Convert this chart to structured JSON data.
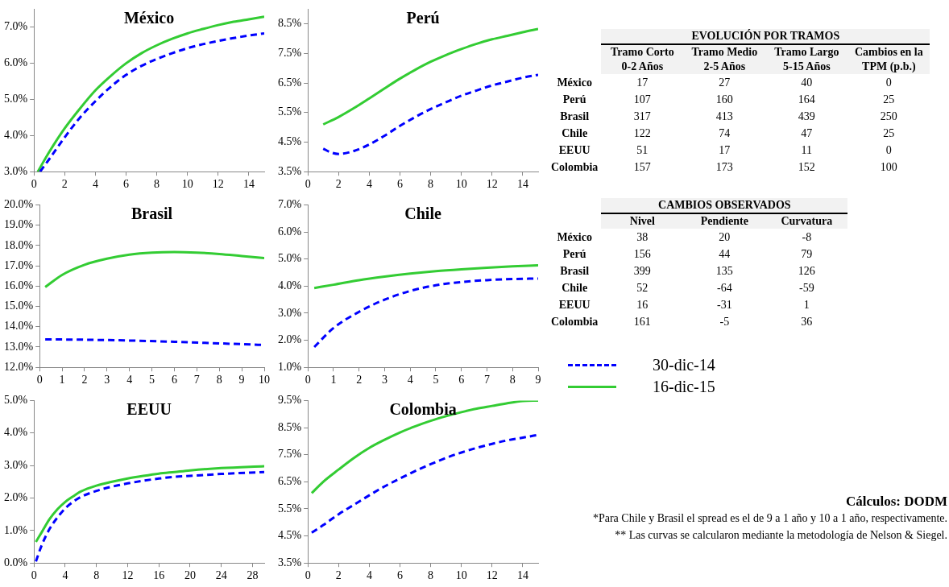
{
  "chart_data": [
    {
      "type": "line",
      "title": "México",
      "xlim": [
        0,
        15
      ],
      "xticks": [
        0,
        2,
        4,
        6,
        8,
        10,
        12,
        14
      ],
      "ylim": [
        3,
        7.5
      ],
      "yticks": [
        {
          "value": 3,
          "label": "3.0%"
        },
        {
          "value": 4,
          "label": "4.0%"
        },
        {
          "value": 5,
          "label": "5.0%"
        },
        {
          "value": 6,
          "label": "6.0%"
        },
        {
          "value": 7,
          "label": "7.0%"
        }
      ],
      "legend": "right",
      "marker": "none",
      "series": [
        {
          "name": "30-dic-14",
          "color": "#0000ff",
          "line_style": "dashed",
          "x": [
            0.4,
            1,
            2,
            3,
            4,
            5,
            6,
            7,
            8,
            9,
            10,
            11,
            12,
            13,
            14,
            15
          ],
          "values": [
            3.0,
            3.35,
            3.95,
            4.5,
            4.95,
            5.35,
            5.68,
            5.93,
            6.12,
            6.28,
            6.42,
            6.53,
            6.62,
            6.7,
            6.77,
            6.83
          ]
        },
        {
          "name": "16-dic-15",
          "color": "#33cc33",
          "line_style": "solid",
          "x": [
            0.25,
            1,
            2,
            3,
            4,
            5,
            6,
            7,
            8,
            9,
            10,
            11,
            12,
            13,
            14,
            15
          ],
          "values": [
            3.0,
            3.55,
            4.2,
            4.75,
            5.25,
            5.65,
            6.0,
            6.28,
            6.5,
            6.68,
            6.83,
            6.95,
            7.06,
            7.15,
            7.22,
            7.29
          ]
        }
      ]
    },
    {
      "type": "line",
      "title": "Perú",
      "xlim": [
        0,
        15
      ],
      "xticks": [
        0,
        2,
        4,
        6,
        8,
        10,
        12,
        14
      ],
      "ylim": [
        3.5,
        9
      ],
      "yticks": [
        {
          "value": 3.5,
          "label": "3.5%"
        },
        {
          "value": 4.5,
          "label": "4.5%"
        },
        {
          "value": 5.5,
          "label": "5.5%"
        },
        {
          "value": 6.5,
          "label": "6.5%"
        },
        {
          "value": 7.5,
          "label": "7.5%"
        },
        {
          "value": 8.5,
          "label": "8.5%"
        }
      ],
      "marker": "none",
      "series": [
        {
          "color": "#0000ff",
          "line_style": "dashed",
          "x": [
            1,
            1.5,
            2,
            3,
            4,
            5,
            6,
            7,
            8,
            9,
            10,
            11,
            12,
            13,
            14,
            15
          ],
          "values": [
            4.28,
            4.15,
            4.1,
            4.2,
            4.42,
            4.72,
            5.05,
            5.35,
            5.62,
            5.85,
            6.07,
            6.25,
            6.42,
            6.55,
            6.68,
            6.78
          ]
        },
        {
          "color": "#33cc33",
          "line_style": "solid",
          "x": [
            1,
            2,
            3,
            4,
            5,
            6,
            7,
            8,
            9,
            10,
            11,
            12,
            13,
            14,
            15
          ],
          "values": [
            5.1,
            5.35,
            5.65,
            5.98,
            6.32,
            6.65,
            6.95,
            7.22,
            7.45,
            7.65,
            7.83,
            7.98,
            8.1,
            8.22,
            8.33
          ]
        }
      ]
    },
    {
      "type": "line",
      "title": "Brasil",
      "xlim": [
        0,
        10
      ],
      "xticks": [
        0,
        1,
        2,
        3,
        4,
        5,
        6,
        7,
        8,
        9,
        10
      ],
      "ylim": [
        12,
        20
      ],
      "yticks": [
        {
          "value": 12,
          "label": "12.0%"
        },
        {
          "value": 13,
          "label": "13.0%"
        },
        {
          "value": 14,
          "label": "14.0%"
        },
        {
          "value": 15,
          "label": "15.0%"
        },
        {
          "value": 16,
          "label": "16.0%"
        },
        {
          "value": 17,
          "label": "17.0%"
        },
        {
          "value": 18,
          "label": "18.0%"
        },
        {
          "value": 19,
          "label": "19.0%"
        },
        {
          "value": 20,
          "label": "20.0%"
        }
      ],
      "marker": "none",
      "series": [
        {
          "color": "#0000ff",
          "line_style": "dashed",
          "x": [
            0.25,
            2,
            4,
            6,
            8,
            10
          ],
          "values": [
            13.38,
            13.36,
            13.32,
            13.26,
            13.18,
            13.1
          ]
        },
        {
          "color": "#33cc33",
          "line_style": "solid",
          "x": [
            0.25,
            1,
            2,
            3,
            4,
            5,
            6,
            7,
            8,
            9,
            10
          ],
          "values": [
            15.95,
            16.55,
            17.05,
            17.35,
            17.55,
            17.65,
            17.68,
            17.65,
            17.58,
            17.48,
            17.38
          ]
        }
      ]
    },
    {
      "type": "line",
      "title": "Chile",
      "xlim": [
        0,
        9
      ],
      "xticks": [
        0,
        1,
        2,
        3,
        4,
        5,
        6,
        7,
        8,
        9
      ],
      "ylim": [
        1,
        7
      ],
      "yticks": [
        {
          "value": 1,
          "label": "1.0%"
        },
        {
          "value": 2,
          "label": "2.0%"
        },
        {
          "value": 3,
          "label": "3.0%"
        },
        {
          "value": 4,
          "label": "4.0%"
        },
        {
          "value": 5,
          "label": "5.0%"
        },
        {
          "value": 6,
          "label": "6.0%"
        },
        {
          "value": 7,
          "label": "7.0%"
        }
      ],
      "marker": "none",
      "series": [
        {
          "color": "#0000ff",
          "line_style": "dashed",
          "x": [
            0.25,
            1,
            2,
            3,
            4,
            5,
            6,
            7,
            8,
            9
          ],
          "values": [
            1.75,
            2.45,
            3.05,
            3.5,
            3.82,
            4.03,
            4.15,
            4.22,
            4.26,
            4.28
          ]
        },
        {
          "color": "#33cc33",
          "line_style": "solid",
          "x": [
            0.25,
            1,
            2,
            3,
            4,
            5,
            6,
            7,
            8,
            9
          ],
          "values": [
            3.93,
            4.05,
            4.22,
            4.35,
            4.46,
            4.55,
            4.62,
            4.68,
            4.73,
            4.77
          ]
        }
      ]
    },
    {
      "type": "line",
      "title": "EEUU",
      "xlim": [
        0,
        29.5
      ],
      "xticks": [
        0,
        4,
        8,
        12,
        16,
        20,
        24,
        28
      ],
      "ylim": [
        0,
        5
      ],
      "yticks": [
        {
          "value": 0,
          "label": "0.0%"
        },
        {
          "value": 1,
          "label": "1.0%"
        },
        {
          "value": 2,
          "label": "2.0%"
        },
        {
          "value": 3,
          "label": "3.0%"
        },
        {
          "value": 4,
          "label": "4.0%"
        },
        {
          "value": 5,
          "label": "5.0%"
        }
      ],
      "marker": "none",
      "series": [
        {
          "color": "#0000ff",
          "line_style": "dashed",
          "x": [
            0.25,
            1,
            2,
            3,
            4,
            5,
            6,
            8,
            10,
            12,
            14,
            16,
            18,
            20,
            24,
            29.5
          ],
          "values": [
            0.05,
            0.55,
            1.05,
            1.4,
            1.68,
            1.88,
            2.03,
            2.22,
            2.35,
            2.45,
            2.53,
            2.6,
            2.65,
            2.68,
            2.74,
            2.8
          ]
        },
        {
          "color": "#33cc33",
          "line_style": "solid",
          "x": [
            0.25,
            1,
            2,
            3,
            4,
            5,
            6,
            8,
            10,
            12,
            14,
            16,
            18,
            20,
            24,
            29.5
          ],
          "values": [
            0.65,
            0.95,
            1.35,
            1.65,
            1.88,
            2.05,
            2.2,
            2.38,
            2.5,
            2.6,
            2.68,
            2.75,
            2.8,
            2.85,
            2.92,
            2.98
          ]
        }
      ]
    },
    {
      "type": "line",
      "title": "Colombia",
      "xlim": [
        0,
        15
      ],
      "xticks": [
        0,
        2,
        4,
        6,
        8,
        10,
        12,
        14
      ],
      "ylim": [
        3.5,
        9.5
      ],
      "yticks": [
        {
          "value": 3.5,
          "label": "3.5%"
        },
        {
          "value": 4.5,
          "label": "4.5%"
        },
        {
          "value": 5.5,
          "label": "5.5%"
        },
        {
          "value": 6.5,
          "label": "6.5%"
        },
        {
          "value": 7.5,
          "label": "7.5%"
        },
        {
          "value": 8.5,
          "label": "8.5%"
        },
        {
          "value": 9.5,
          "label": "9.5%"
        }
      ],
      "marker": "none",
      "series": [
        {
          "color": "#0000ff",
          "line_style": "dashed",
          "x": [
            0.25,
            1,
            2,
            3,
            4,
            5,
            6,
            7,
            8,
            9,
            10,
            11,
            12,
            13,
            14,
            15
          ],
          "values": [
            4.62,
            4.9,
            5.3,
            5.65,
            6.0,
            6.33,
            6.62,
            6.9,
            7.15,
            7.38,
            7.58,
            7.75,
            7.9,
            8.03,
            8.13,
            8.23
          ]
        },
        {
          "color": "#33cc33",
          "line_style": "solid",
          "x": [
            0.25,
            1,
            2,
            3,
            4,
            5,
            6,
            7,
            8,
            9,
            10,
            11,
            12,
            13,
            14,
            15
          ],
          "values": [
            6.08,
            6.5,
            6.95,
            7.38,
            7.75,
            8.05,
            8.32,
            8.55,
            8.75,
            8.92,
            9.07,
            9.2,
            9.3,
            9.4,
            9.48,
            9.5
          ]
        }
      ]
    },
    {
      "type": "heatmap",
      "title": "EVOLUCIÓN POR TRAMOS",
      "data_labels": true,
      "categories": [
        "Tramo Corto 0-2 Años",
        "Tramo Medio 2-5 Años",
        "Tramo Largo 5-15 Años",
        "Cambios en la TPM (p.b.)"
      ],
      "y_categories": [
        "México",
        "Perú",
        "Brasil",
        "Chile",
        "EEUU",
        "Colombia"
      ],
      "cells": [
        [
          17,
          27,
          40,
          0
        ],
        [
          107,
          160,
          164,
          25
        ],
        [
          317,
          413,
          439,
          250
        ],
        [
          122,
          74,
          47,
          25
        ],
        [
          51,
          17,
          11,
          0
        ],
        [
          157,
          173,
          152,
          100
        ]
      ]
    },
    {
      "type": "heatmap",
      "title": "CAMBIOS OBSERVADOS",
      "data_labels": true,
      "categories": [
        "Nivel",
        "Pendiente",
        "Curvatura"
      ],
      "y_categories": [
        "México",
        "Perú",
        "Brasil",
        "Chile",
        "EEUU",
        "Colombia"
      ],
      "cells": [
        [
          38,
          20,
          -8
        ],
        [
          156,
          44,
          79
        ],
        [
          399,
          135,
          126
        ],
        [
          52,
          -64,
          -59
        ],
        [
          16,
          -31,
          1
        ],
        [
          161,
          -5,
          36
        ]
      ]
    },
    {
      "type": "other",
      "annotations": [
        "Cálculos: DODM",
        "*Para Chile y Brasil el spread es el de 9 a 1 año y 10 a 1 año, respectivamente.",
        "** Las curvas se calcularon mediante la metodología de Nelson & Siegel."
      ]
    }
  ]
}
